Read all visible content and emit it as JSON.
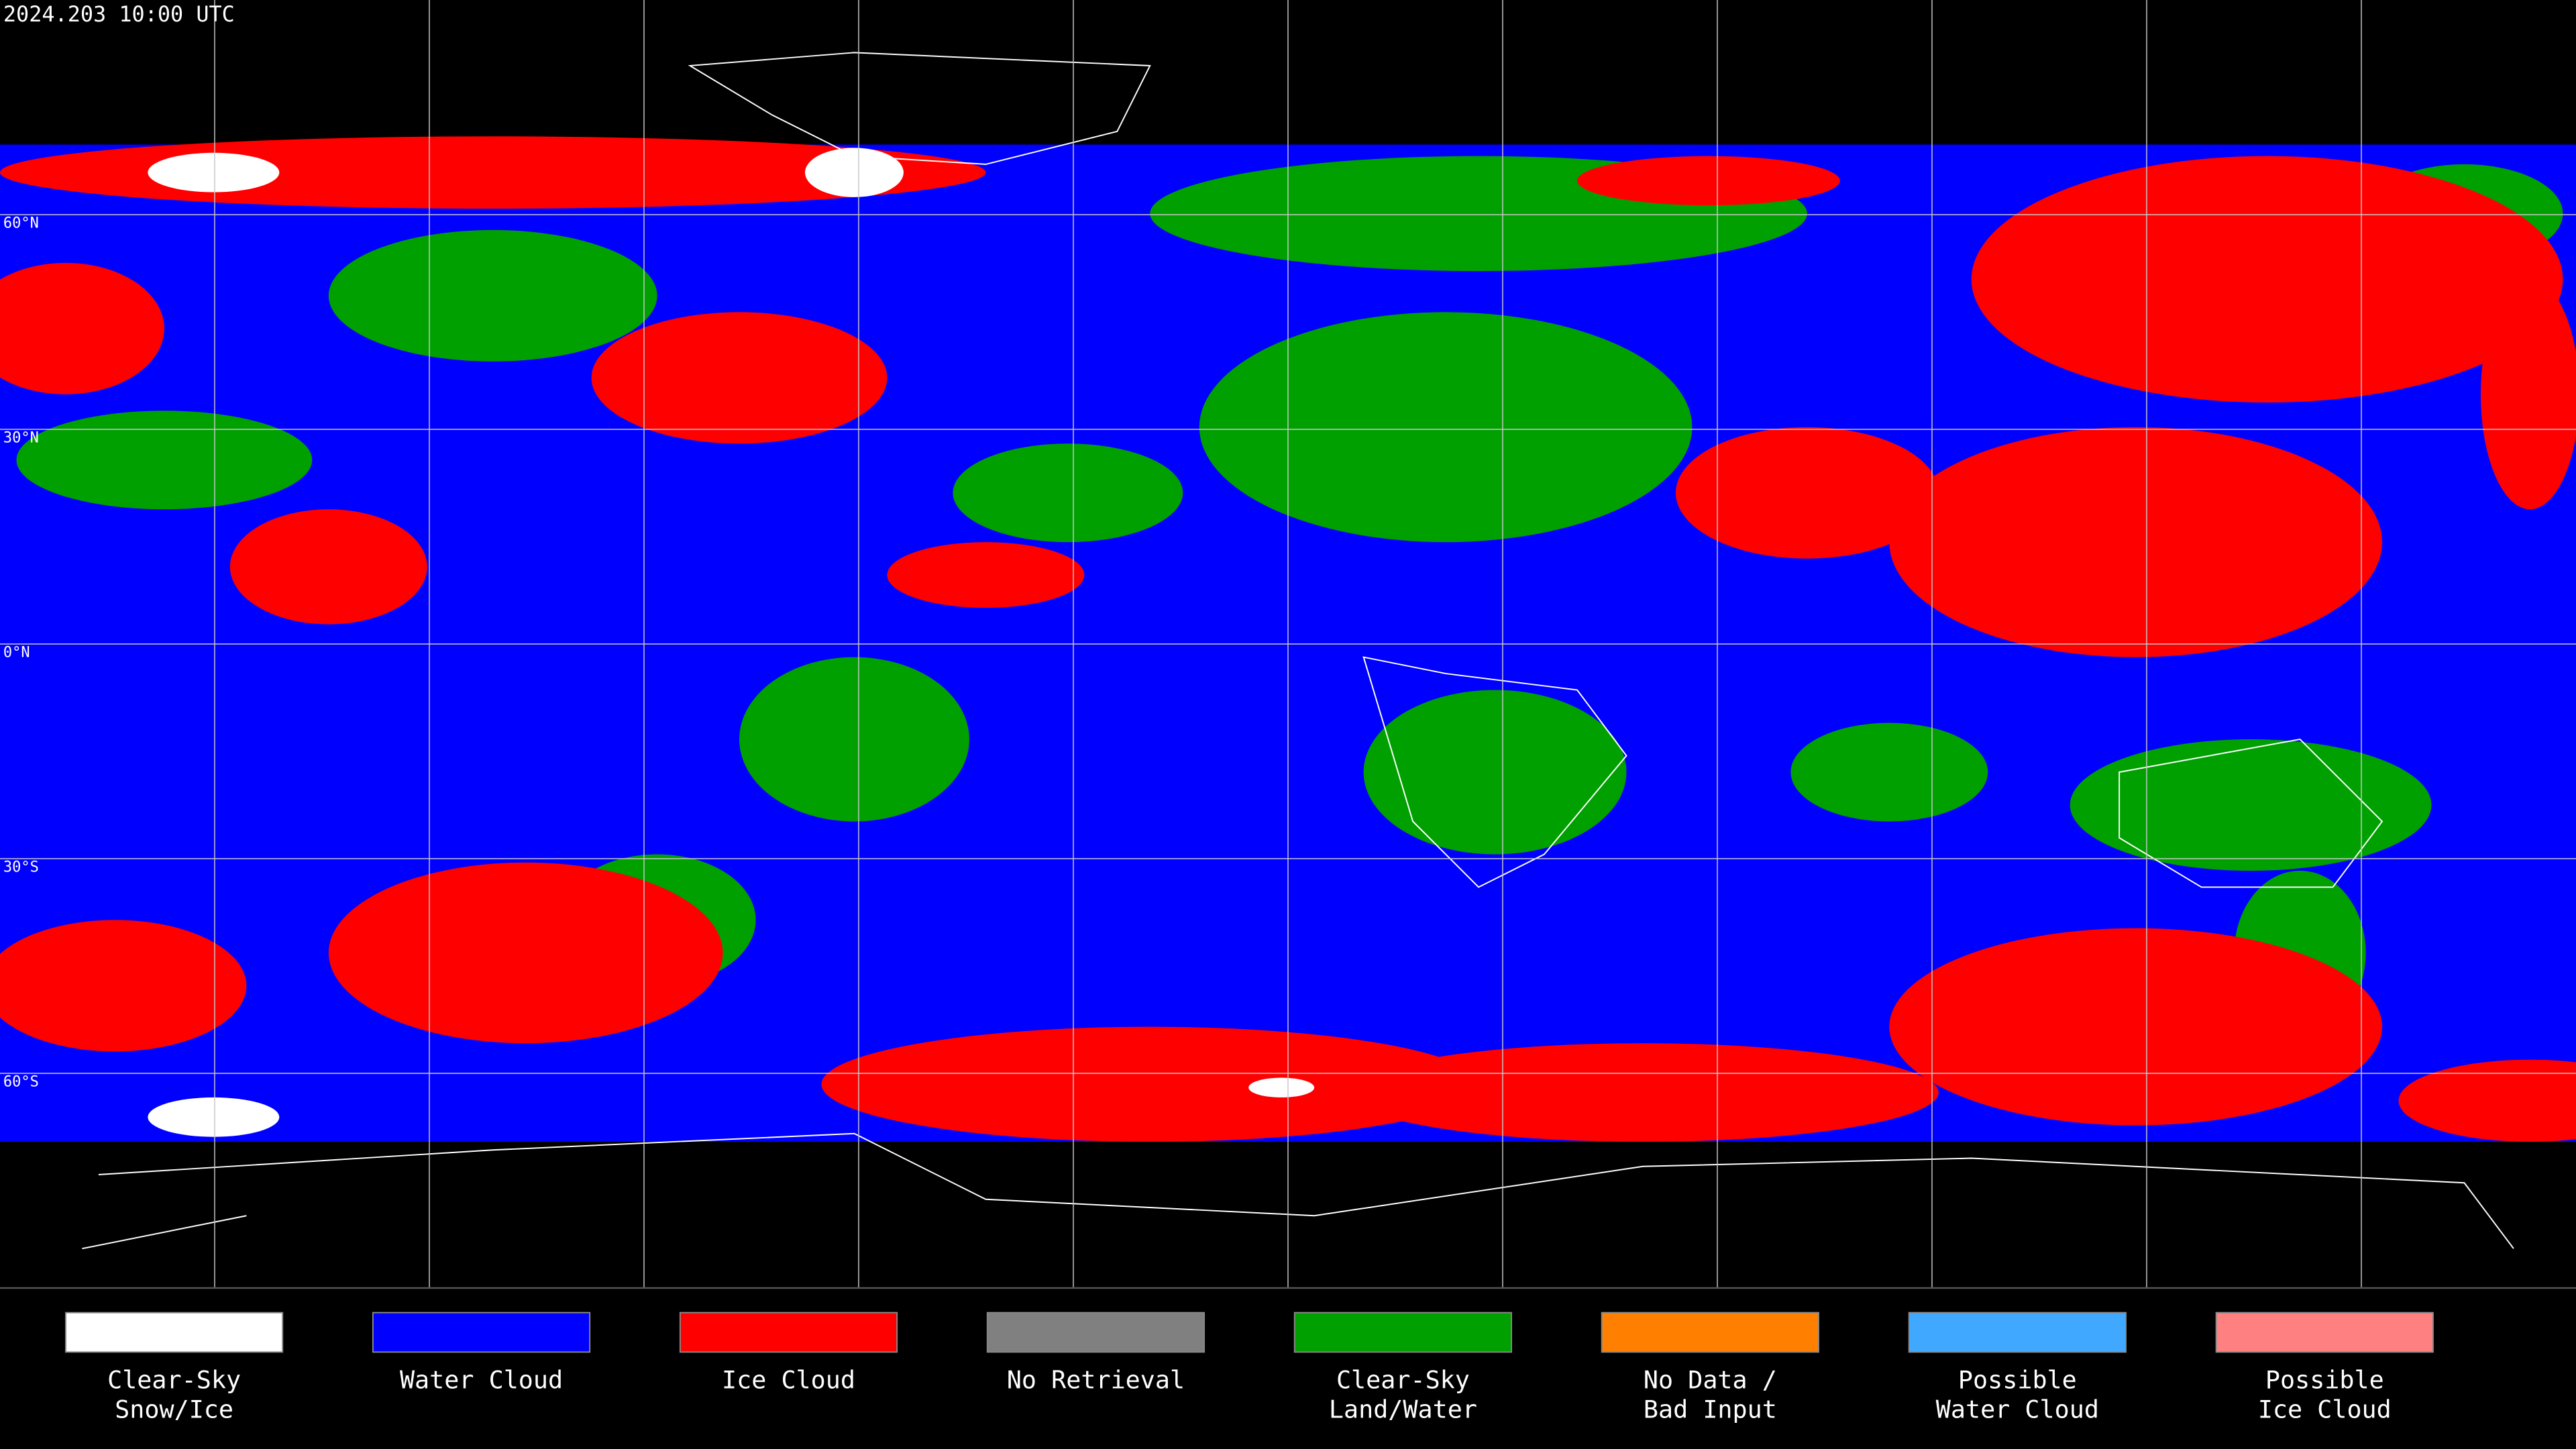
{
  "header": {
    "timestamp": "2024.203 10:00 UTC"
  },
  "latitude_labels": [
    "60°N",
    "30°N",
    "0°N",
    "30°S",
    "60°S"
  ],
  "legend": [
    {
      "lines": [
        "Clear-Sky",
        "Snow/Ice"
      ],
      "color": "#ffffff"
    },
    {
      "lines": [
        "Water Cloud"
      ],
      "color": "#0000ff"
    },
    {
      "lines": [
        "Ice Cloud"
      ],
      "color": "#ff0000"
    },
    {
      "lines": [
        "No Retrieval"
      ],
      "color": "#808080"
    },
    {
      "lines": [
        "Clear-Sky",
        "Land/Water"
      ],
      "color": "#00a000"
    },
    {
      "lines": [
        "No Data /",
        "Bad Input"
      ],
      "color": "#ff8000"
    },
    {
      "lines": [
        "Possible",
        "Water Cloud"
      ],
      "color": "#40a8ff"
    },
    {
      "lines": [
        "Possible",
        "Ice Cloud"
      ],
      "color": "#ff8080"
    }
  ]
}
